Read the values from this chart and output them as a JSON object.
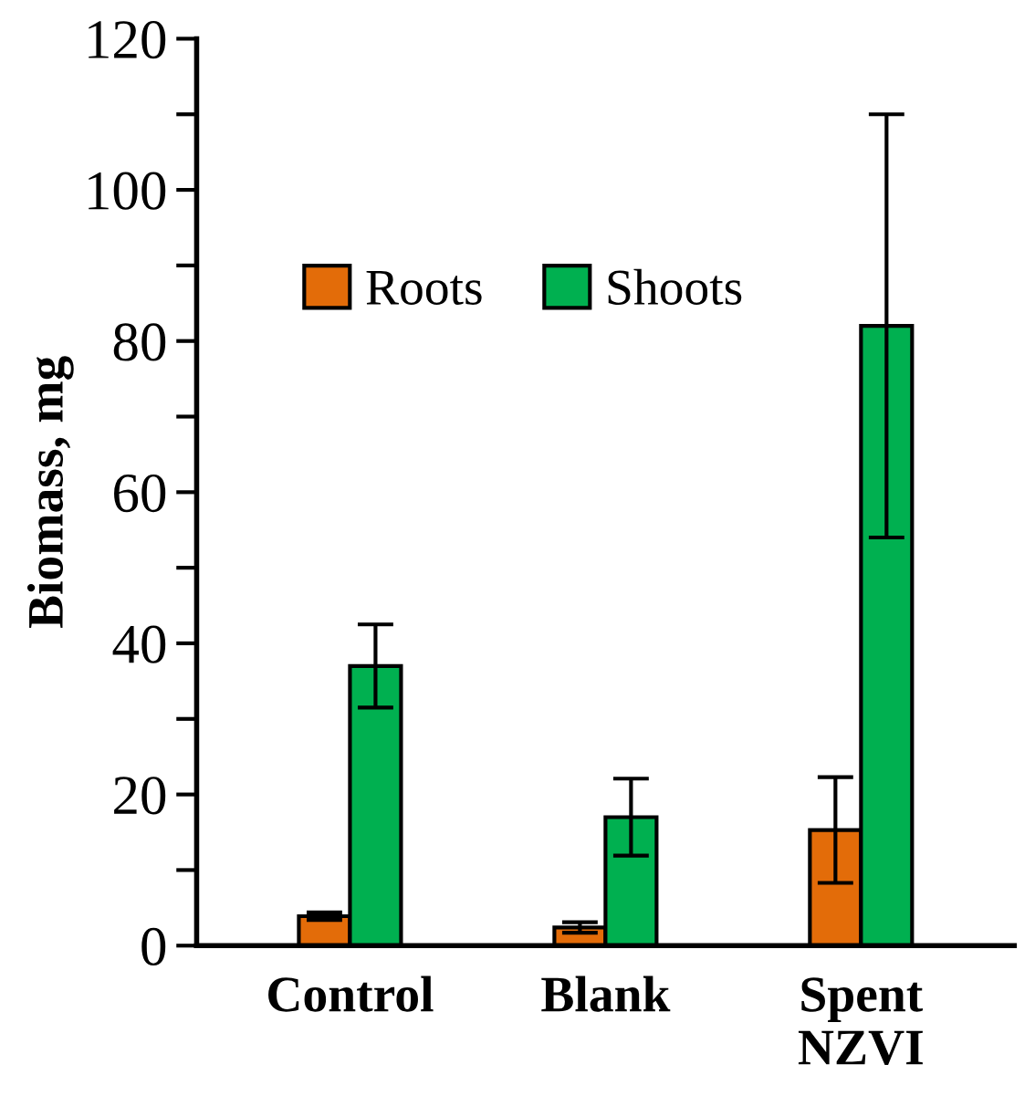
{
  "chart_data": {
    "type": "bar",
    "ylabel": "Biomass, mg",
    "categories": [
      "Control",
      "Blank",
      "Spent\nNZVI"
    ],
    "series": [
      {
        "name": "Roots",
        "color": "#e36c09",
        "values": [
          3.9,
          2.4,
          15.3
        ],
        "errors": [
          0.5,
          0.7,
          7
        ]
      },
      {
        "name": "Shoots",
        "color": "#00b050",
        "values": [
          37,
          17,
          82
        ],
        "errors": [
          5.5,
          5.1,
          28
        ]
      }
    ],
    "ylim": [
      0,
      120
    ],
    "yticks": [
      0,
      {
        "value": 10,
        "label": null
      },
      20,
      {
        "value": 30,
        "label": null
      },
      40,
      {
        "value": 50,
        "label": null
      },
      60,
      {
        "value": 70,
        "label": null
      },
      80,
      {
        "value": 90,
        "label": null
      },
      100,
      {
        "value": 110,
        "label": null
      },
      120
    ],
    "grid": false,
    "legend": "top"
  }
}
